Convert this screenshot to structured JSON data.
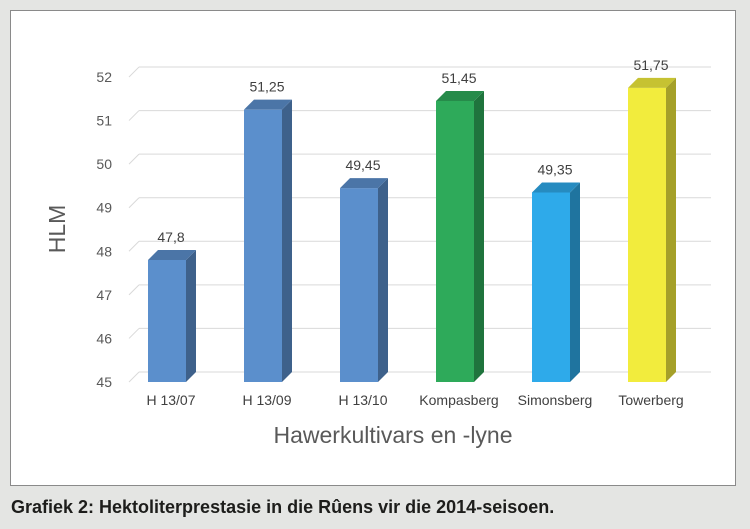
{
  "chart_data": {
    "type": "bar",
    "style": "3d-column",
    "categories": [
      "H 13/07",
      "H 13/09",
      "H 13/10",
      "Kompasberg",
      "Simonsberg",
      "Towerberg"
    ],
    "values": [
      47.8,
      51.25,
      49.45,
      51.45,
      49.35,
      51.75
    ],
    "value_labels": [
      "47,8",
      "51,25",
      "49,45",
      "51,45",
      "49,35",
      "51,75"
    ],
    "colors": [
      "#5b8fcc",
      "#5b8fcc",
      "#5b8fcc",
      "#2eaa5a",
      "#2eaaea",
      "#f2ec3d"
    ],
    "ylim": [
      45,
      52
    ],
    "yticks": [
      45,
      46,
      47,
      48,
      49,
      50,
      51,
      52
    ],
    "ylabel": "HLM",
    "xlabel": "Hawerkultivars en -lyne",
    "grid": true,
    "legend": "none"
  },
  "caption": "Grafiek 2: Hektoliterprestasie in die Rûens vir die 2014-seisoen."
}
